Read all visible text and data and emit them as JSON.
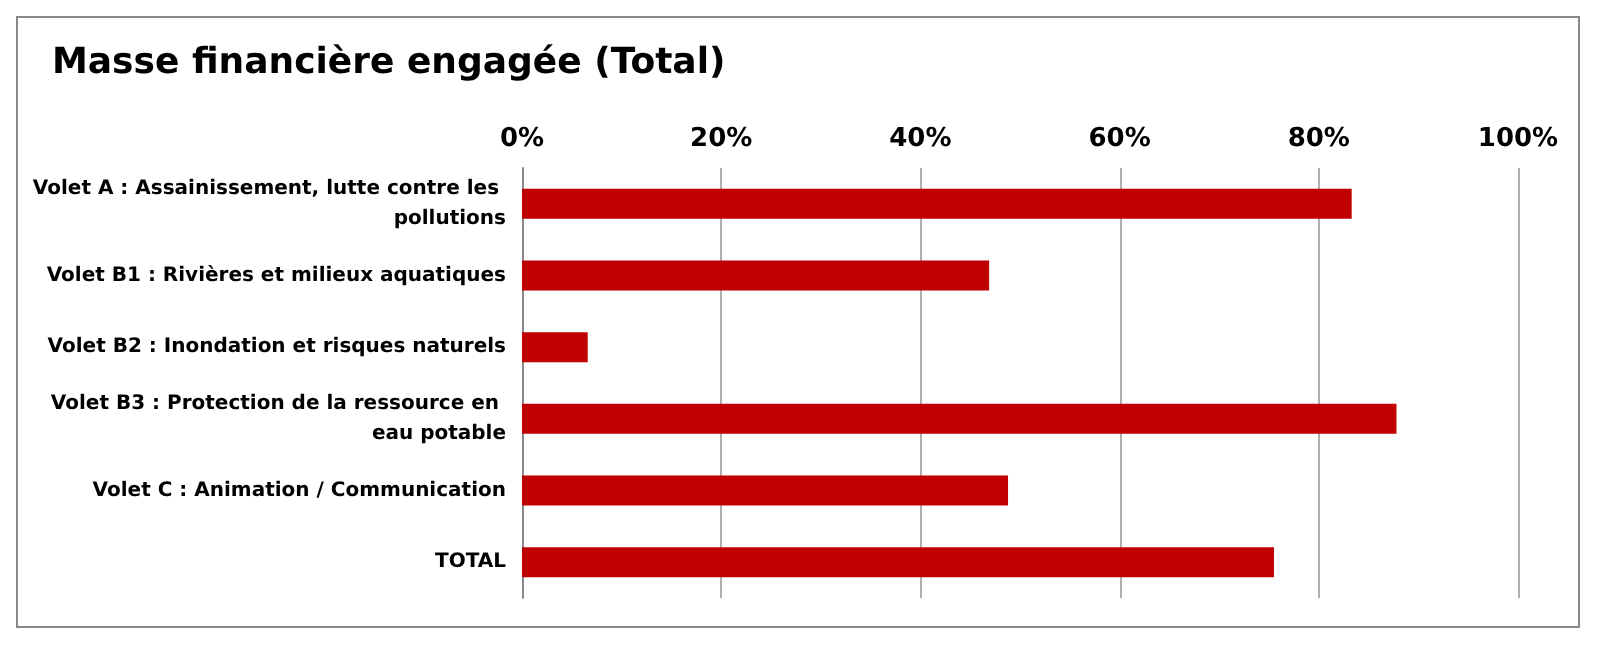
{
  "chart_data": {
    "type": "bar",
    "orientation": "horizontal",
    "title": "Masse financière engagée (Total)",
    "categories": [
      "Volet A : Assainissement, lutte contre les pollutions",
      "Volet B1 : Rivières et milieux aquatiques",
      "Volet B2 : Inondation et risques naturels",
      "Volet B3 : Protection de la ressource en eau potable",
      "Volet C : Animation / Communication",
      "TOTAL"
    ],
    "values": [
      83.3,
      46.9,
      6.6,
      87.8,
      48.8,
      75.5
    ],
    "color": "#c00000",
    "xlim": [
      0,
      100
    ],
    "xticks": [
      {
        "value": 0,
        "label": "0%"
      },
      {
        "value": 20,
        "label": "20%"
      },
      {
        "value": 40,
        "label": "40%"
      },
      {
        "value": 60,
        "label": "60%"
      },
      {
        "value": 80,
        "label": "80%"
      },
      {
        "value": 100,
        "label": "100%"
      }
    ],
    "grid": "x"
  }
}
